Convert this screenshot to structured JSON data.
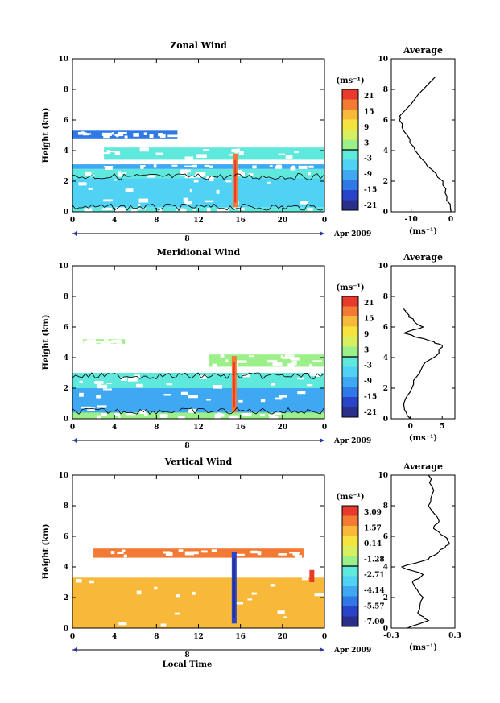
{
  "colors": [
    "#2a2f8a",
    "#2944c8",
    "#2f78e6",
    "#3fa8f2",
    "#4fd2f4",
    "#5fe8dc",
    "#9cf08a",
    "#d8f060",
    "#f6e43e",
    "#f8b83a",
    "#f27a34",
    "#e83a2c"
  ],
  "panels": [
    {
      "title": "Zonal Wind",
      "ylabel": "Height (km)",
      "xticks": [
        "0",
        "4",
        "8",
        "12",
        "16",
        "20",
        "0"
      ],
      "yticks": [
        "0",
        "2",
        "4",
        "6",
        "8",
        "10"
      ],
      "date_day": "8",
      "date_month": "Apr 2009",
      "cbar_unit": "(ms⁻¹)",
      "cbar_ticks": [
        "21",
        "15",
        "9",
        "3",
        "-3",
        "-9",
        "-15",
        "-21"
      ],
      "avg_title": "Average",
      "avg_xticks": [
        "-10",
        "0"
      ],
      "avg_yticks": [
        "0",
        "2",
        "4",
        "6",
        "8",
        "10"
      ],
      "avg_xlabel": "(ms⁻¹)"
    },
    {
      "title": "Meridional Wind",
      "ylabel": "Height (km)",
      "xticks": [
        "0",
        "4",
        "8",
        "12",
        "16",
        "20",
        "0"
      ],
      "yticks": [
        "0",
        "2",
        "4",
        "6",
        "8",
        "10"
      ],
      "date_day": "8",
      "date_month": "Apr 2009",
      "cbar_unit": "(ms⁻¹)",
      "cbar_ticks": [
        "21",
        "15",
        "9",
        "3",
        "-3",
        "-9",
        "-15",
        "-21"
      ],
      "avg_title": "Average",
      "avg_xticks": [
        "0",
        "5"
      ],
      "avg_yticks": [
        "0",
        "2",
        "4",
        "6",
        "8",
        "10"
      ],
      "avg_xlabel": "(ms⁻¹)"
    },
    {
      "title": "Vertical Wind",
      "ylabel": "Height (km)",
      "xlabel": "Local Time",
      "xticks": [
        "0",
        "4",
        "8",
        "12",
        "16",
        "20",
        "0"
      ],
      "yticks": [
        "0",
        "2",
        "4",
        "6",
        "8",
        "10"
      ],
      "date_day": "8",
      "date_month": "Apr 2009",
      "cbar_unit": "(ms⁻¹)",
      "cbar_ticks": [
        "3.09",
        "1.57",
        "0.14",
        "-1.28",
        "-2.71",
        "-4.14",
        "-5.57",
        "-7.00"
      ],
      "avg_title": "Average",
      "avg_xticks": [
        "-0.3",
        "0.3"
      ],
      "avg_yticks": [
        "0",
        "2",
        "4",
        "6",
        "8",
        "10"
      ],
      "avg_xlabel": "(ms⁻¹)"
    }
  ],
  "chart_data": [
    {
      "type": "heatmap",
      "title": "Zonal Wind",
      "ylabel": "Height (km)",
      "x_range_hours": [
        0,
        24
      ],
      "ylim": [
        0,
        10
      ],
      "colorbar_range": [
        -21,
        21
      ],
      "bands": [
        {
          "h0": 0.0,
          "h1": 0.3,
          "t0": 0,
          "t1": 24,
          "value": -3
        },
        {
          "h0": 0.3,
          "h1": 2.2,
          "t0": 0,
          "t1": 24,
          "value": -6
        },
        {
          "h0": 2.2,
          "h1": 2.8,
          "t0": 0,
          "t1": 24,
          "value": -3
        },
        {
          "h0": 2.8,
          "h1": 3.1,
          "t0": 0,
          "t1": 24,
          "value": -9
        },
        {
          "h0": 3.4,
          "h1": 4.2,
          "t0": 3,
          "t1": 24,
          "value": -3
        },
        {
          "h0": 4.8,
          "h1": 5.3,
          "t0": 0,
          "t1": 10,
          "value": -12
        }
      ],
      "spikes": [
        {
          "t": 15.5,
          "h0": 0.3,
          "h1": 3.8,
          "value": 15
        }
      ],
      "average": {
        "h": [
          0,
          1,
          2,
          3,
          4,
          5,
          6,
          6.5,
          8.8
        ],
        "u": [
          0,
          -1,
          -2,
          -6,
          -9,
          -11,
          -13,
          -12,
          -4
        ]
      }
    },
    {
      "type": "heatmap",
      "title": "Meridional Wind",
      "ylabel": "Height (km)",
      "x_range_hours": [
        0,
        24
      ],
      "ylim": [
        0,
        10
      ],
      "colorbar_range": [
        -21,
        21
      ],
      "bands": [
        {
          "h0": 0.0,
          "h1": 0.4,
          "t0": 0,
          "t1": 24,
          "value": 0
        },
        {
          "h0": 0.4,
          "h1": 2.0,
          "t0": 0,
          "t1": 24,
          "value": -8
        },
        {
          "h0": 2.0,
          "h1": 3.0,
          "t0": 0,
          "t1": 24,
          "value": -1
        },
        {
          "h0": 3.4,
          "h1": 4.2,
          "t0": 13,
          "t1": 24,
          "value": 1
        },
        {
          "h0": 4.9,
          "h1": 5.2,
          "t0": 1,
          "t1": 5,
          "value": 3
        }
      ],
      "spikes": [
        {
          "t": 15.4,
          "h0": 0.4,
          "h1": 4.1,
          "value": 15
        }
      ],
      "average": {
        "h": [
          0,
          0.8,
          1.5,
          2.5,
          3.5,
          4.3,
          4.8,
          5.1,
          5.6,
          6.0,
          6.4,
          6.9,
          7.2
        ],
        "v": [
          0,
          -1,
          -0.5,
          0.5,
          2,
          4.5,
          5,
          3,
          -1,
          2,
          0.5,
          -0.5,
          -1
        ]
      }
    },
    {
      "type": "heatmap",
      "title": "Vertical Wind",
      "xlabel": "Local Time",
      "ylabel": "Height (km)",
      "x_range_hours": [
        0,
        24
      ],
      "ylim": [
        0,
        10
      ],
      "colorbar_range": [
        -7.0,
        3.09
      ],
      "bands": [
        {
          "h0": 0.0,
          "h1": 3.3,
          "t0": 0,
          "t1": 24,
          "value": 0.8
        },
        {
          "h0": 4.6,
          "h1": 5.2,
          "t0": 2,
          "t1": 22,
          "value": 1.5
        }
      ],
      "spikes": [
        {
          "t": 15.4,
          "h0": 0.3,
          "h1": 5.0,
          "value": -5.5
        },
        {
          "t": 22.8,
          "h0": 3.0,
          "h1": 3.8,
          "value": 2.5
        }
      ],
      "average": {
        "h": [
          0,
          0.5,
          1,
          2,
          3,
          3.5,
          4,
          4.5,
          5,
          5.5,
          6,
          6.5,
          7,
          8,
          9,
          10
        ],
        "w": [
          -0.15,
          0.05,
          -0.05,
          0.0,
          -0.1,
          0.0,
          -0.2,
          0.05,
          0.15,
          0.25,
          0.2,
          0.1,
          0.15,
          0.05,
          0.1,
          0.05
        ]
      }
    }
  ]
}
